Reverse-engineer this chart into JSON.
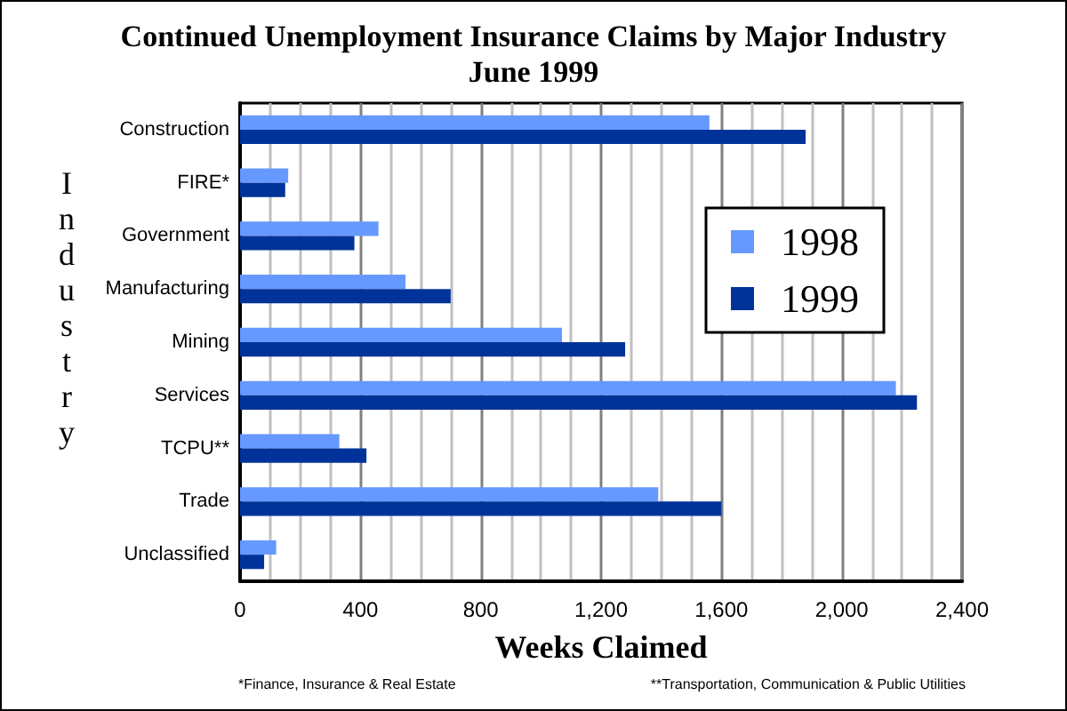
{
  "chart_data": {
    "type": "bar",
    "orientation": "horizontal",
    "title": "Continued Unemployment Insurance Claims by Major Industry",
    "subtitle": "June 1999",
    "xlabel": "Weeks Claimed",
    "ylabel": "Industry",
    "categories": [
      "Construction",
      "FIRE*",
      "Government",
      "Manufacturing",
      "Mining",
      "Services",
      "TCPU**",
      "Trade",
      "Unclassified"
    ],
    "series": [
      {
        "name": "1998",
        "color": "#6699ff",
        "values": [
          1560,
          160,
          460,
          550,
          1070,
          2180,
          330,
          1390,
          120
        ]
      },
      {
        "name": "1999",
        "color": "#003399",
        "values": [
          1880,
          150,
          380,
          700,
          1280,
          2250,
          420,
          1600,
          80
        ]
      }
    ],
    "xlim": [
      0,
      2400
    ],
    "xticks": [
      0,
      {
        "value": 100,
        "label": null
      },
      {
        "value": 200,
        "label": null
      },
      {
        "value": 300,
        "label": null
      },
      400,
      {
        "value": 500,
        "label": null
      },
      {
        "value": 600,
        "label": null
      },
      {
        "value": 700,
        "label": null
      },
      800,
      {
        "value": 900,
        "label": null
      },
      {
        "value": 1000,
        "label": null
      },
      {
        "value": 1100,
        "label": null
      },
      {
        "value": 1200,
        "label": "1,200"
      },
      {
        "value": 1300,
        "label": null
      },
      {
        "value": 1400,
        "label": null
      },
      {
        "value": 1500,
        "label": null
      },
      {
        "value": 1600,
        "label": "1,600"
      },
      {
        "value": 1700,
        "label": null
      },
      {
        "value": 1800,
        "label": null
      },
      {
        "value": 1900,
        "label": null
      },
      {
        "value": 2000,
        "label": "2,000"
      },
      {
        "value": 2100,
        "label": null
      },
      {
        "value": 2200,
        "label": null
      },
      {
        "value": 2300,
        "label": null
      },
      {
        "value": 2400,
        "label": "2,400"
      }
    ],
    "grid": "x",
    "legend": "right",
    "annotations": [
      "*Finance, Insurance & Real Estate",
      "**Transportation, Communication & Public Utilities"
    ]
  }
}
